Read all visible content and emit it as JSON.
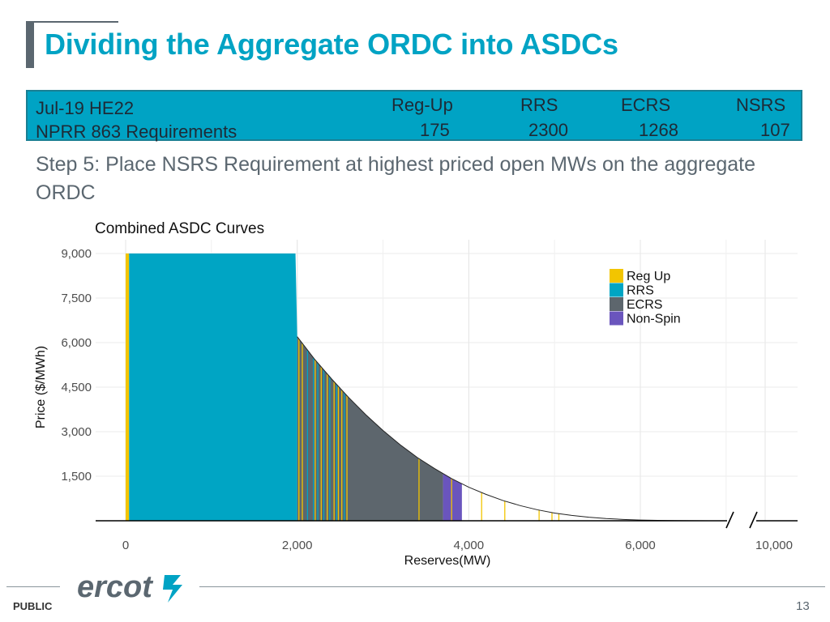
{
  "slide": {
    "title": "Dividing the Aggregate ORDC into ASDCs",
    "step_text": "Step 5:  Place NSRS Requirement at highest priced open MWs on the aggregate ORDC",
    "footer": {
      "classification": "PUBLIC",
      "page_number": "13",
      "logo_text": "ercot"
    }
  },
  "requirements": {
    "period": "Jul-19 HE22",
    "row_label": "NPRR 863 Requirements",
    "items": [
      {
        "name": "Reg-Up",
        "value": "175"
      },
      {
        "name": "RRS",
        "value": "2300"
      },
      {
        "name": "ECRS",
        "value": "1268"
      },
      {
        "name": "NSRS",
        "value": "107"
      }
    ]
  },
  "chart_data": {
    "type": "area",
    "title": "Combined ASDC Curves",
    "xlabel": "Reserves(MW)",
    "ylabel": "Price ($/MWh)",
    "ylim": [
      0,
      9600
    ],
    "xlim_main": [
      0,
      7000
    ],
    "x_break_label": "10,000",
    "x_ticks": [
      0,
      2000,
      4000,
      6000
    ],
    "x_tick_labels": [
      "0",
      "2,000",
      "4,000",
      "6,000"
    ],
    "y_ticks": [
      1500,
      3000,
      4500,
      6000,
      7500,
      9000
    ],
    "y_tick_labels": [
      "1,500",
      "3,000",
      "4,500",
      "6,000",
      "7,500",
      "9,000"
    ],
    "legend": {
      "position": "top-right",
      "entries": [
        {
          "name": "Reg Up",
          "color": "#f2c500"
        },
        {
          "name": "RRS",
          "color": "#00a5c4"
        },
        {
          "name": "ECRS",
          "color": "#5d666d"
        },
        {
          "name": "Non-Spin",
          "color": "#6a55bd"
        }
      ]
    },
    "curve": {
      "flat_price": 9000,
      "flat_end_mw": 2000,
      "drop_price": 6200,
      "points": [
        [
          2000,
          6200
        ],
        [
          2200,
          5450
        ],
        [
          2400,
          4780
        ],
        [
          2600,
          4150
        ],
        [
          2800,
          3570
        ],
        [
          3000,
          3040
        ],
        [
          3200,
          2560
        ],
        [
          3400,
          2130
        ],
        [
          3600,
          1760
        ],
        [
          3800,
          1420
        ],
        [
          4000,
          1130
        ],
        [
          4200,
          890
        ],
        [
          4400,
          680
        ],
        [
          4600,
          510
        ],
        [
          4800,
          370
        ],
        [
          5000,
          260
        ],
        [
          5200,
          180
        ],
        [
          5400,
          120
        ],
        [
          5600,
          75
        ],
        [
          5800,
          45
        ],
        [
          6000,
          25
        ],
        [
          6200,
          12
        ],
        [
          6400,
          6
        ],
        [
          6600,
          3
        ],
        [
          6800,
          1
        ],
        [
          7000,
          0
        ]
      ]
    },
    "segments": [
      {
        "service": "Reg Up",
        "from": 0,
        "to": 40
      },
      {
        "service": "RRS",
        "from": 40,
        "to": 2000
      },
      {
        "service": "ECRS",
        "from": 2000,
        "to": 3700
      },
      {
        "service": "Non-Spin",
        "from": 3700,
        "to": 3920
      }
    ],
    "stripes": [
      {
        "service": "Reg Up",
        "x": [
          2020,
          2060,
          2210,
          2280,
          2350,
          2430,
          2480,
          2520,
          2580,
          3420,
          3800,
          4150,
          4420,
          4820,
          4970,
          5050
        ]
      },
      {
        "service": "RRS",
        "x": [
          2120,
          2190,
          2240,
          2310,
          2380,
          2460,
          2550
        ]
      }
    ]
  }
}
